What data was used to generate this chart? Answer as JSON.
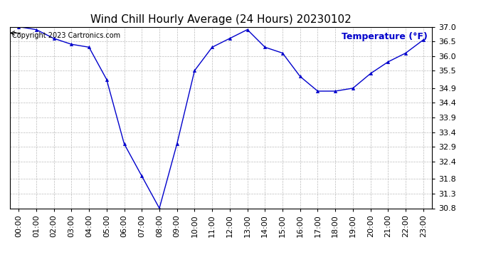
{
  "title": "Wind Chill Hourly Average (24 Hours) 20230102",
  "temp_label": "Temperature (°F)",
  "copyright_text": "Copyright 2023 Cartronics.com",
  "line_color": "#0000cc",
  "background_color": "#ffffff",
  "plot_bg_color": "#ffffff",
  "hours": [
    "00:00",
    "01:00",
    "02:00",
    "03:00",
    "04:00",
    "05:00",
    "06:00",
    "07:00",
    "08:00",
    "09:00",
    "10:00",
    "11:00",
    "12:00",
    "13:00",
    "14:00",
    "15:00",
    "16:00",
    "17:00",
    "18:00",
    "19:00",
    "20:00",
    "21:00",
    "22:00",
    "23:00"
  ],
  "values": [
    37.0,
    36.9,
    36.6,
    36.4,
    36.3,
    35.2,
    33.0,
    31.9,
    30.8,
    33.0,
    35.5,
    36.3,
    36.6,
    36.9,
    36.3,
    36.1,
    35.3,
    34.8,
    34.8,
    34.9,
    35.4,
    35.8,
    36.1,
    36.55
  ],
  "ylim_min": 30.8,
  "ylim_max": 37.0,
  "yticks": [
    30.8,
    31.3,
    31.8,
    32.4,
    32.9,
    33.4,
    33.9,
    34.4,
    34.9,
    35.5,
    36.0,
    36.5,
    37.0
  ],
  "grid_color": "#bbbbbb",
  "title_fontsize": 11,
  "label_fontsize": 9,
  "tick_fontsize": 8,
  "copyright_fontsize": 7
}
